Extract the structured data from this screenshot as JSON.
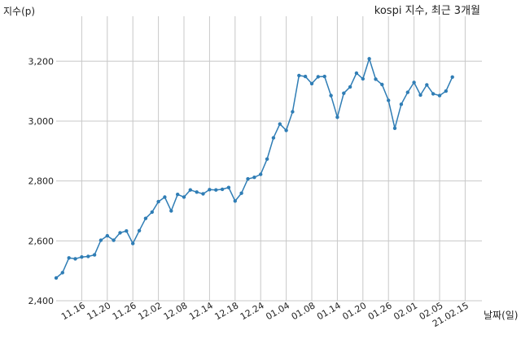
{
  "chart_data": {
    "type": "line",
    "title": "kospi 지수, 최근 3개월",
    "ylabel": "지수(p)",
    "xlabel": "날짜(일)",
    "ylim": [
      2400,
      3350
    ],
    "yticks": [
      2400,
      2600,
      2800,
      3000,
      3200
    ],
    "ytick_labels": [
      "2,400",
      "2,600",
      "2,800",
      "3,000",
      "3,200"
    ],
    "grid": true,
    "legend": "none",
    "color": "#2f7db5",
    "xtick_labels": [
      {
        "label": "11.16",
        "index": 4
      },
      {
        "label": "11.20",
        "index": 8
      },
      {
        "label": "11.26",
        "index": 12
      },
      {
        "label": "12.02",
        "index": 16
      },
      {
        "label": "12.08",
        "index": 20
      },
      {
        "label": "12.14",
        "index": 24
      },
      {
        "label": "12.18",
        "index": 28
      },
      {
        "label": "12.24",
        "index": 32
      },
      {
        "label": "01.04",
        "index": 36
      },
      {
        "label": "01.08",
        "index": 40
      },
      {
        "label": "01.14",
        "index": 44
      },
      {
        "label": "01.20",
        "index": 48
      },
      {
        "label": "01.26",
        "index": 52
      },
      {
        "label": "02.01",
        "index": 56
      },
      {
        "label": "02.05",
        "index": 60
      },
      {
        "label": "21.02.15",
        "index": 64
      }
    ],
    "values": [
      2476,
      2494,
      2543,
      2540,
      2546,
      2548,
      2553,
      2602,
      2617,
      2602,
      2627,
      2633,
      2591,
      2634,
      2675,
      2696,
      2731,
      2746,
      2700,
      2755,
      2746,
      2770,
      2763,
      2757,
      2771,
      2770,
      2772,
      2778,
      2733,
      2759,
      2807,
      2812,
      2822,
      2873,
      2944,
      2990,
      2969,
      3031,
      3152,
      3149,
      3125,
      3148,
      3149,
      3085,
      3013,
      3093,
      3114,
      3160,
      3141,
      3208,
      3140,
      3122,
      3069,
      2976,
      3056,
      3096,
      3129,
      3087,
      3121,
      3091,
      3085,
      3100,
      3147
    ]
  }
}
